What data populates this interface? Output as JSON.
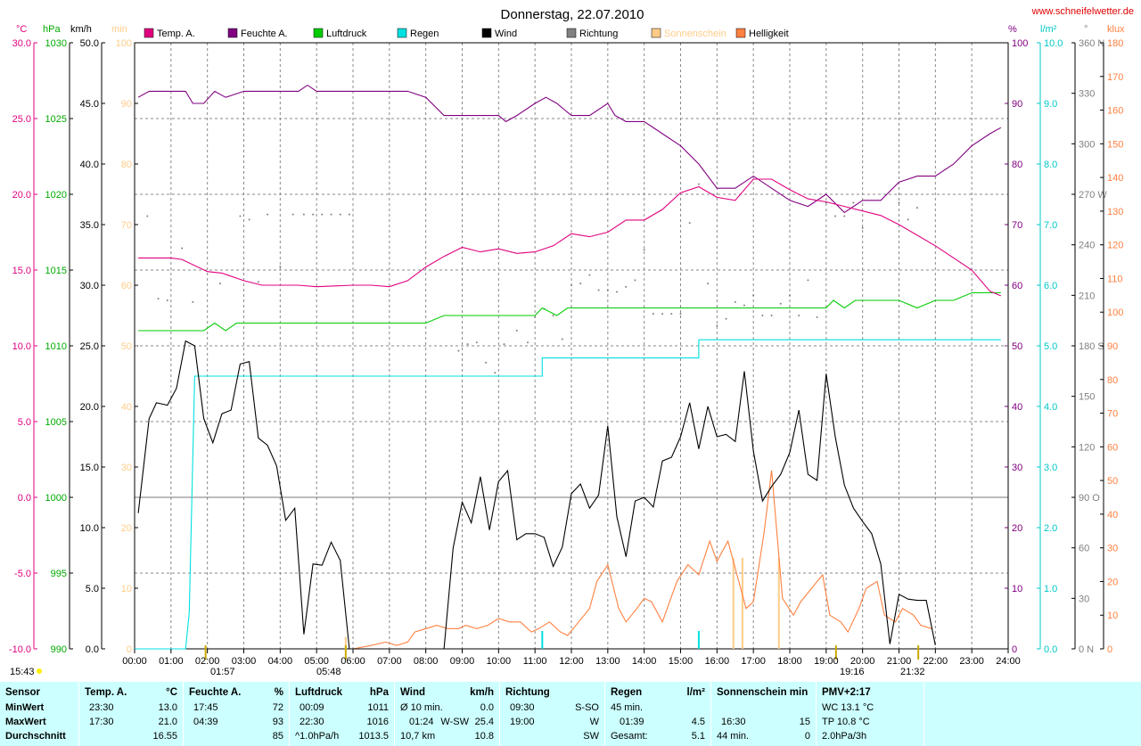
{
  "header": {
    "title": "Donnerstag, 22.07.2010",
    "site": "www.schneifelwetter.de"
  },
  "legend": [
    {
      "label": "Temp. A.",
      "color": "#e0007f"
    },
    {
      "label": "Feuchte A.",
      "color": "#800080"
    },
    {
      "label": "Luftdruck",
      "color": "#00cc00"
    },
    {
      "label": "Regen",
      "color": "#00e0e0"
    },
    {
      "label": "Wind",
      "color": "#000000"
    },
    {
      "label": "Richtung",
      "color": "#808080"
    },
    {
      "label": "Sonnenschein",
      "color": "#ffcc88"
    },
    {
      "label": "Helligkeit",
      "color": "#ff8040"
    }
  ],
  "axes": {
    "temp_unit": "°C",
    "pressure_unit": "hPa",
    "wind_unit": "km/h",
    "sun_unit": "min",
    "hum_unit": "%",
    "rain_unit": "l/m²",
    "dir_unit": "°",
    "lux_unit": "klux",
    "temp_ticks": [
      "30.0",
      "25.0",
      "20.0",
      "15.0",
      "10.0",
      "5.0",
      "0.0",
      "-5.0",
      "-10.0"
    ],
    "pressure_ticks": [
      "1030",
      "1025",
      "1020",
      "1015",
      "1010",
      "1005",
      "1000",
      "995",
      "990"
    ],
    "wind_ticks": [
      "50.0",
      "45.0",
      "40.0",
      "35.0",
      "30.0",
      "25.0",
      "20.0",
      "15.0",
      "10.0",
      "5.0",
      "0.0"
    ],
    "sun_ticks": [
      "100",
      "90",
      "80",
      "70",
      "60",
      "50",
      "40",
      "30",
      "20",
      "10",
      "0"
    ],
    "hum_ticks": [
      "100",
      "90",
      "80",
      "70",
      "60",
      "50",
      "40",
      "30",
      "20",
      "10",
      "0"
    ],
    "rain_ticks": [
      "10.0",
      "9.0",
      "8.0",
      "7.0",
      "6.0",
      "5.0",
      "4.0",
      "3.0",
      "2.0",
      "1.0",
      "0.0"
    ],
    "dir_ticks": [
      "360 N",
      "330",
      "300",
      "270 W",
      "240",
      "210",
      "180 S",
      "150",
      "120",
      "90 O",
      "60",
      "30",
      "0 N"
    ],
    "lux_ticks": [
      "180",
      "170",
      "160",
      "150",
      "140",
      "130",
      "120",
      "110",
      "100",
      "90",
      "80",
      "70",
      "60",
      "50",
      "40",
      "30",
      "20",
      "10",
      "0"
    ],
    "x_ticks": [
      "00:00",
      "01:00",
      "02:00",
      "03:00",
      "04:00",
      "05:00",
      "06:00",
      "07:00",
      "08:00",
      "09:00",
      "10:00",
      "11:00",
      "12:00",
      "13:00",
      "14:00",
      "15:00",
      "16:00",
      "17:00",
      "18:00",
      "19:00",
      "20:00",
      "21:00",
      "22:00",
      "23:00",
      "24:00"
    ]
  },
  "markers": {
    "sunrise_label": "15:43",
    "m1": "01:57",
    "m2": "05:48",
    "m3": "19:16",
    "m4": "21:32"
  },
  "stats": {
    "sensor": {
      "hdr": "Sensor",
      "min": "MinWert",
      "max": "MaxWert",
      "avg": "Durchschnitt"
    },
    "temp": {
      "hdr": "Temp. A.",
      "unit": "°C",
      "min_t": "23:30",
      "min_v": "13.0",
      "max_t": "17:30",
      "max_v": "21.0",
      "avg_v": "16.55"
    },
    "hum": {
      "hdr": "Feuchte A.",
      "unit": "%",
      "min_t": "17:45",
      "min_v": "72",
      "max_t": "04:39",
      "max_v": "93",
      "avg_v": "85"
    },
    "press": {
      "hdr": "Luftdruck",
      "unit": "hPa",
      "min_t": "00:09",
      "min_v": "1011",
      "max_t": "22:30",
      "max_v": "1016",
      "avg_t": "^1.0hPa/h",
      "avg_v": "1013.5"
    },
    "wind": {
      "hdr": "Wind",
      "unit": "km/h",
      "min_t": "Ø 10 min.",
      "min_v": "0.0",
      "max_t": "01:24",
      "max_m": "W-SW",
      "max_v": "25.4",
      "avg_t": "10,7 km",
      "avg_v": "10.8"
    },
    "dir": {
      "hdr": "Richtung",
      "min_t": "09:30",
      "min_v": "S-SO",
      "max_t": "19:00",
      "max_v": "W",
      "avg_v": "SW"
    },
    "rain": {
      "hdr": "Regen",
      "unit": "l/m²",
      "min_t": "45 min.",
      "max_t": "01:39",
      "max_v": "4.5",
      "avg_t": "Gesamt:",
      "avg_v": "5.1"
    },
    "sun": {
      "hdr": "Sonnenschein min",
      "max_t": "16:30",
      "max_v": "15",
      "avg_t": "44 min.",
      "avg_v": "0"
    },
    "pmv": {
      "hdr": "PMV+2:17",
      "min_t": "WC 13.1 °C",
      "max_t": "TP 10.8 °C",
      "avg_t": "2.0hPa/3h"
    }
  },
  "chart_data": {
    "type": "line",
    "x_range": [
      0,
      24
    ],
    "series": [
      {
        "name": "Temp. A.",
        "unit": "°C",
        "color": "#e0007f",
        "x": [
          0.1,
          1,
          1.3,
          2,
          2.4,
          3,
          3.5,
          4.5,
          5,
          6,
          6.5,
          7,
          7.5,
          8,
          8.5,
          9,
          9.5,
          10,
          10.5,
          11,
          11.5,
          12,
          12.5,
          13,
          13.5,
          14,
          14.5,
          15,
          15.5,
          16,
          16.5,
          17,
          17.5,
          18,
          18.5,
          19,
          19.5,
          20,
          20.5,
          21,
          21.5,
          22,
          22.5,
          23,
          23.5,
          23.8
        ],
        "values": [
          15.8,
          15.8,
          15.7,
          14.9,
          14.8,
          14.3,
          14.0,
          14.0,
          13.9,
          14.0,
          14.0,
          13.9,
          14.3,
          15.2,
          15.9,
          16.5,
          16.2,
          16.4,
          16.1,
          16.2,
          16.6,
          17.4,
          17.2,
          17.5,
          18.3,
          18.3,
          19.0,
          20.1,
          20.5,
          19.8,
          19.6,
          21.0,
          21.0,
          20.3,
          19.7,
          19.5,
          19.2,
          18.9,
          18.6,
          18.0,
          17.3,
          16.6,
          15.8,
          15.0,
          13.6,
          13.3
        ]
      },
      {
        "name": "Feuchte A.",
        "unit": "%",
        "color": "#800080",
        "x": [
          0.1,
          0.4,
          1,
          1.4,
          1.6,
          1.9,
          2.2,
          2.5,
          3,
          4,
          4.5,
          4.75,
          5,
          6,
          7,
          7.5,
          8,
          8.5,
          9,
          9.5,
          10,
          10.2,
          10.5,
          11,
          11.3,
          11.6,
          12,
          12.5,
          13,
          13.2,
          13.5,
          14,
          14.5,
          15,
          15.5,
          16,
          16.5,
          17,
          17.5,
          18,
          18.5,
          19,
          19.5,
          20,
          20.5,
          21,
          21.5,
          22,
          22.5,
          23,
          23.5,
          23.8
        ],
        "values": [
          91,
          92,
          92,
          92,
          90,
          90,
          92,
          91,
          92,
          92,
          92,
          93,
          92,
          92,
          92,
          92,
          91,
          88,
          88,
          88,
          88,
          87,
          88,
          90,
          91,
          90,
          88,
          88,
          90,
          88,
          87,
          87,
          85,
          83,
          80,
          76,
          76,
          78,
          76,
          74,
          73,
          75,
          72,
          74,
          74,
          77,
          78,
          78,
          80,
          83,
          85,
          86
        ]
      },
      {
        "name": "Luftdruck",
        "unit": "hPa",
        "color": "#00cc00",
        "x": [
          0.1,
          1.9,
          2.2,
          2.5,
          2.8,
          3,
          4,
          5,
          6,
          7,
          8,
          8.5,
          9,
          10,
          11,
          11.2,
          11.6,
          11.9,
          12,
          13,
          14,
          15,
          16,
          17,
          18,
          19,
          19.2,
          19.5,
          19.8,
          20,
          21,
          21.5,
          22,
          22.5,
          23,
          23.8
        ],
        "values": [
          1011,
          1011,
          1011.5,
          1011,
          1011.5,
          1011.5,
          1011.5,
          1011.5,
          1011.5,
          1011.5,
          1011.5,
          1012,
          1012,
          1012,
          1012,
          1012.5,
          1012,
          1012.5,
          1012.5,
          1012.5,
          1012.5,
          1012.5,
          1012.5,
          1012.5,
          1012.5,
          1012.5,
          1013,
          1012.5,
          1013,
          1013,
          1013,
          1012.5,
          1013,
          1013,
          1013.5,
          1013.5
        ]
      },
      {
        "name": "Regen",
        "unit": "l/m²",
        "color": "#00e0e0",
        "x": [
          0,
          1.4,
          1.5,
          1.65,
          11.2,
          11.2,
          15.5,
          15.5,
          23.8
        ],
        "values": [
          0,
          0,
          0.6,
          4.5,
          4.5,
          4.8,
          4.8,
          5.1,
          5.1
        ]
      },
      {
        "name": "Wind",
        "unit": "km/h",
        "color": "#000000",
        "x": [
          0.1,
          0.4,
          0.6,
          0.9,
          1.15,
          1.4,
          1.65,
          1.9,
          2.15,
          2.4,
          2.65,
          2.9,
          3.15,
          3.4,
          3.65,
          3.9,
          4.15,
          4.4,
          4.65,
          4.9,
          5.15,
          5.4,
          5.65,
          5.9,
          8.5,
          8.75,
          9,
          9.25,
          9.5,
          9.75,
          10,
          10.25,
          10.5,
          10.75,
          11,
          11.25,
          11.5,
          11.75,
          12,
          12.25,
          12.5,
          12.75,
          13,
          13.25,
          13.5,
          13.75,
          14,
          14.25,
          14.5,
          14.75,
          15,
          15.25,
          15.5,
          15.75,
          16,
          16.25,
          16.5,
          16.75,
          17,
          17.25,
          17.5,
          17.75,
          18,
          18.25,
          18.5,
          18.75,
          19,
          19.25,
          19.5,
          19.75,
          20,
          20.25,
          20.5,
          20.75,
          21,
          21.25,
          21.5,
          21.75,
          22
        ],
        "values": [
          11.2,
          19.0,
          20.3,
          20.1,
          21.5,
          25.4,
          25.0,
          19.0,
          17.0,
          19.4,
          19.7,
          23.5,
          23.7,
          17.4,
          16.8,
          15.1,
          10.6,
          11.6,
          1.2,
          7.0,
          6.9,
          8.8,
          7.3,
          0,
          0,
          8.3,
          12.1,
          10.4,
          14.2,
          9.8,
          13.8,
          14.7,
          9.0,
          9.5,
          9.5,
          9.2,
          6.8,
          8.4,
          12.8,
          13.6,
          11.6,
          12.7,
          18.4,
          10.9,
          7.6,
          12.2,
          12.5,
          11.7,
          15.5,
          15.8,
          17.5,
          20.3,
          16.5,
          20.0,
          17.5,
          17.7,
          17.1,
          22.9,
          16.3,
          12.2,
          13.4,
          14.4,
          16.2,
          19.7,
          14.4,
          13.9,
          22.7,
          17.5,
          13.5,
          11.6,
          10.5,
          9.5,
          7.0,
          0.4,
          4.5,
          4.1,
          4.0,
          4.0,
          0.3
        ]
      },
      {
        "name": "Richtung",
        "unit": "°",
        "color": "#808080",
        "type": "scatter",
        "x": [
          0.35,
          0.65,
          0.9,
          1.3,
          1.6,
          2.35,
          2.9,
          3.15,
          3.4,
          3.65,
          4.0,
          4.35,
          4.65,
          4.9,
          5.15,
          5.4,
          5.65,
          5.9,
          8.9,
          9.15,
          9.4,
          9.65,
          9.9,
          10.15,
          10.5,
          10.8,
          11.0,
          11.25,
          11.5,
          11.75,
          12.0,
          12.25,
          12.5,
          12.75,
          13.0,
          13.25,
          13.5,
          13.75,
          14.0,
          14.25,
          14.5,
          14.75,
          15.0,
          15.25,
          15.5,
          15.75,
          16.0,
          16.25,
          16.5,
          16.75,
          17.0,
          17.25,
          17.5,
          17.75,
          18.0,
          18.25,
          18.5,
          18.75,
          19.0,
          19.25,
          19.5,
          19.75,
          20.0,
          21.0,
          21.25,
          21.5
        ],
        "values": [
          257,
          208,
          207,
          238,
          206,
          217,
          257,
          255,
          218,
          258,
          227,
          258,
          258,
          258,
          258,
          258,
          258,
          258,
          177,
          181,
          182,
          170,
          164,
          181,
          189,
          182,
          197,
          202,
          198,
          184,
          216,
          217,
          222,
          213,
          213,
          212,
          215,
          219,
          237,
          199,
          199,
          199,
          199,
          253,
          276,
          217,
          192,
          196,
          206,
          204,
          210,
          198,
          198,
          205,
          210,
          198,
          219,
          197,
          265,
          257,
          257,
          265,
          250,
          265,
          255,
          262
        ]
      },
      {
        "name": "Sonnenschein",
        "unit": "min",
        "color": "#ffcc88",
        "type": "bar",
        "x": [
          5.8,
          16.45,
          16.7,
          17.7
        ],
        "values": [
          2,
          15,
          15,
          15
        ]
      },
      {
        "name": "Helligkeit",
        "unit": "klux",
        "color": "#ff8040",
        "x": [
          6.0,
          6.5,
          6.9,
          7.2,
          7.5,
          7.7,
          8.0,
          8.3,
          8.6,
          8.9,
          9.1,
          9.4,
          9.7,
          10.0,
          10.3,
          10.6,
          10.9,
          11.1,
          11.4,
          11.7,
          11.9,
          12.2,
          12.5,
          12.7,
          13.0,
          13.3,
          13.5,
          13.8,
          14.0,
          14.2,
          14.5,
          14.7,
          14.9,
          15.2,
          15.5,
          15.8,
          16.0,
          16.3,
          16.6,
          16.8,
          17.0,
          17.3,
          17.5,
          17.8,
          18.1,
          18.3,
          18.6,
          18.9,
          19.1,
          19.4,
          19.6,
          19.9,
          20.1,
          20.4,
          20.6,
          20.9,
          21.1,
          21.4,
          21.6,
          21.9
        ],
        "values": [
          0,
          1,
          2,
          1,
          2,
          5,
          6,
          7,
          6,
          6,
          7,
          6,
          7,
          9,
          8,
          8,
          5,
          6,
          8,
          5,
          4,
          8,
          12,
          20,
          25,
          12,
          8,
          12,
          15,
          14,
          8,
          14,
          20,
          25,
          22,
          32,
          26,
          32,
          20,
          12,
          14,
          35,
          53,
          15,
          10,
          14,
          18,
          22,
          10,
          8,
          5,
          12,
          18,
          20,
          10,
          8,
          12,
          10,
          7,
          6
        ]
      }
    ]
  }
}
